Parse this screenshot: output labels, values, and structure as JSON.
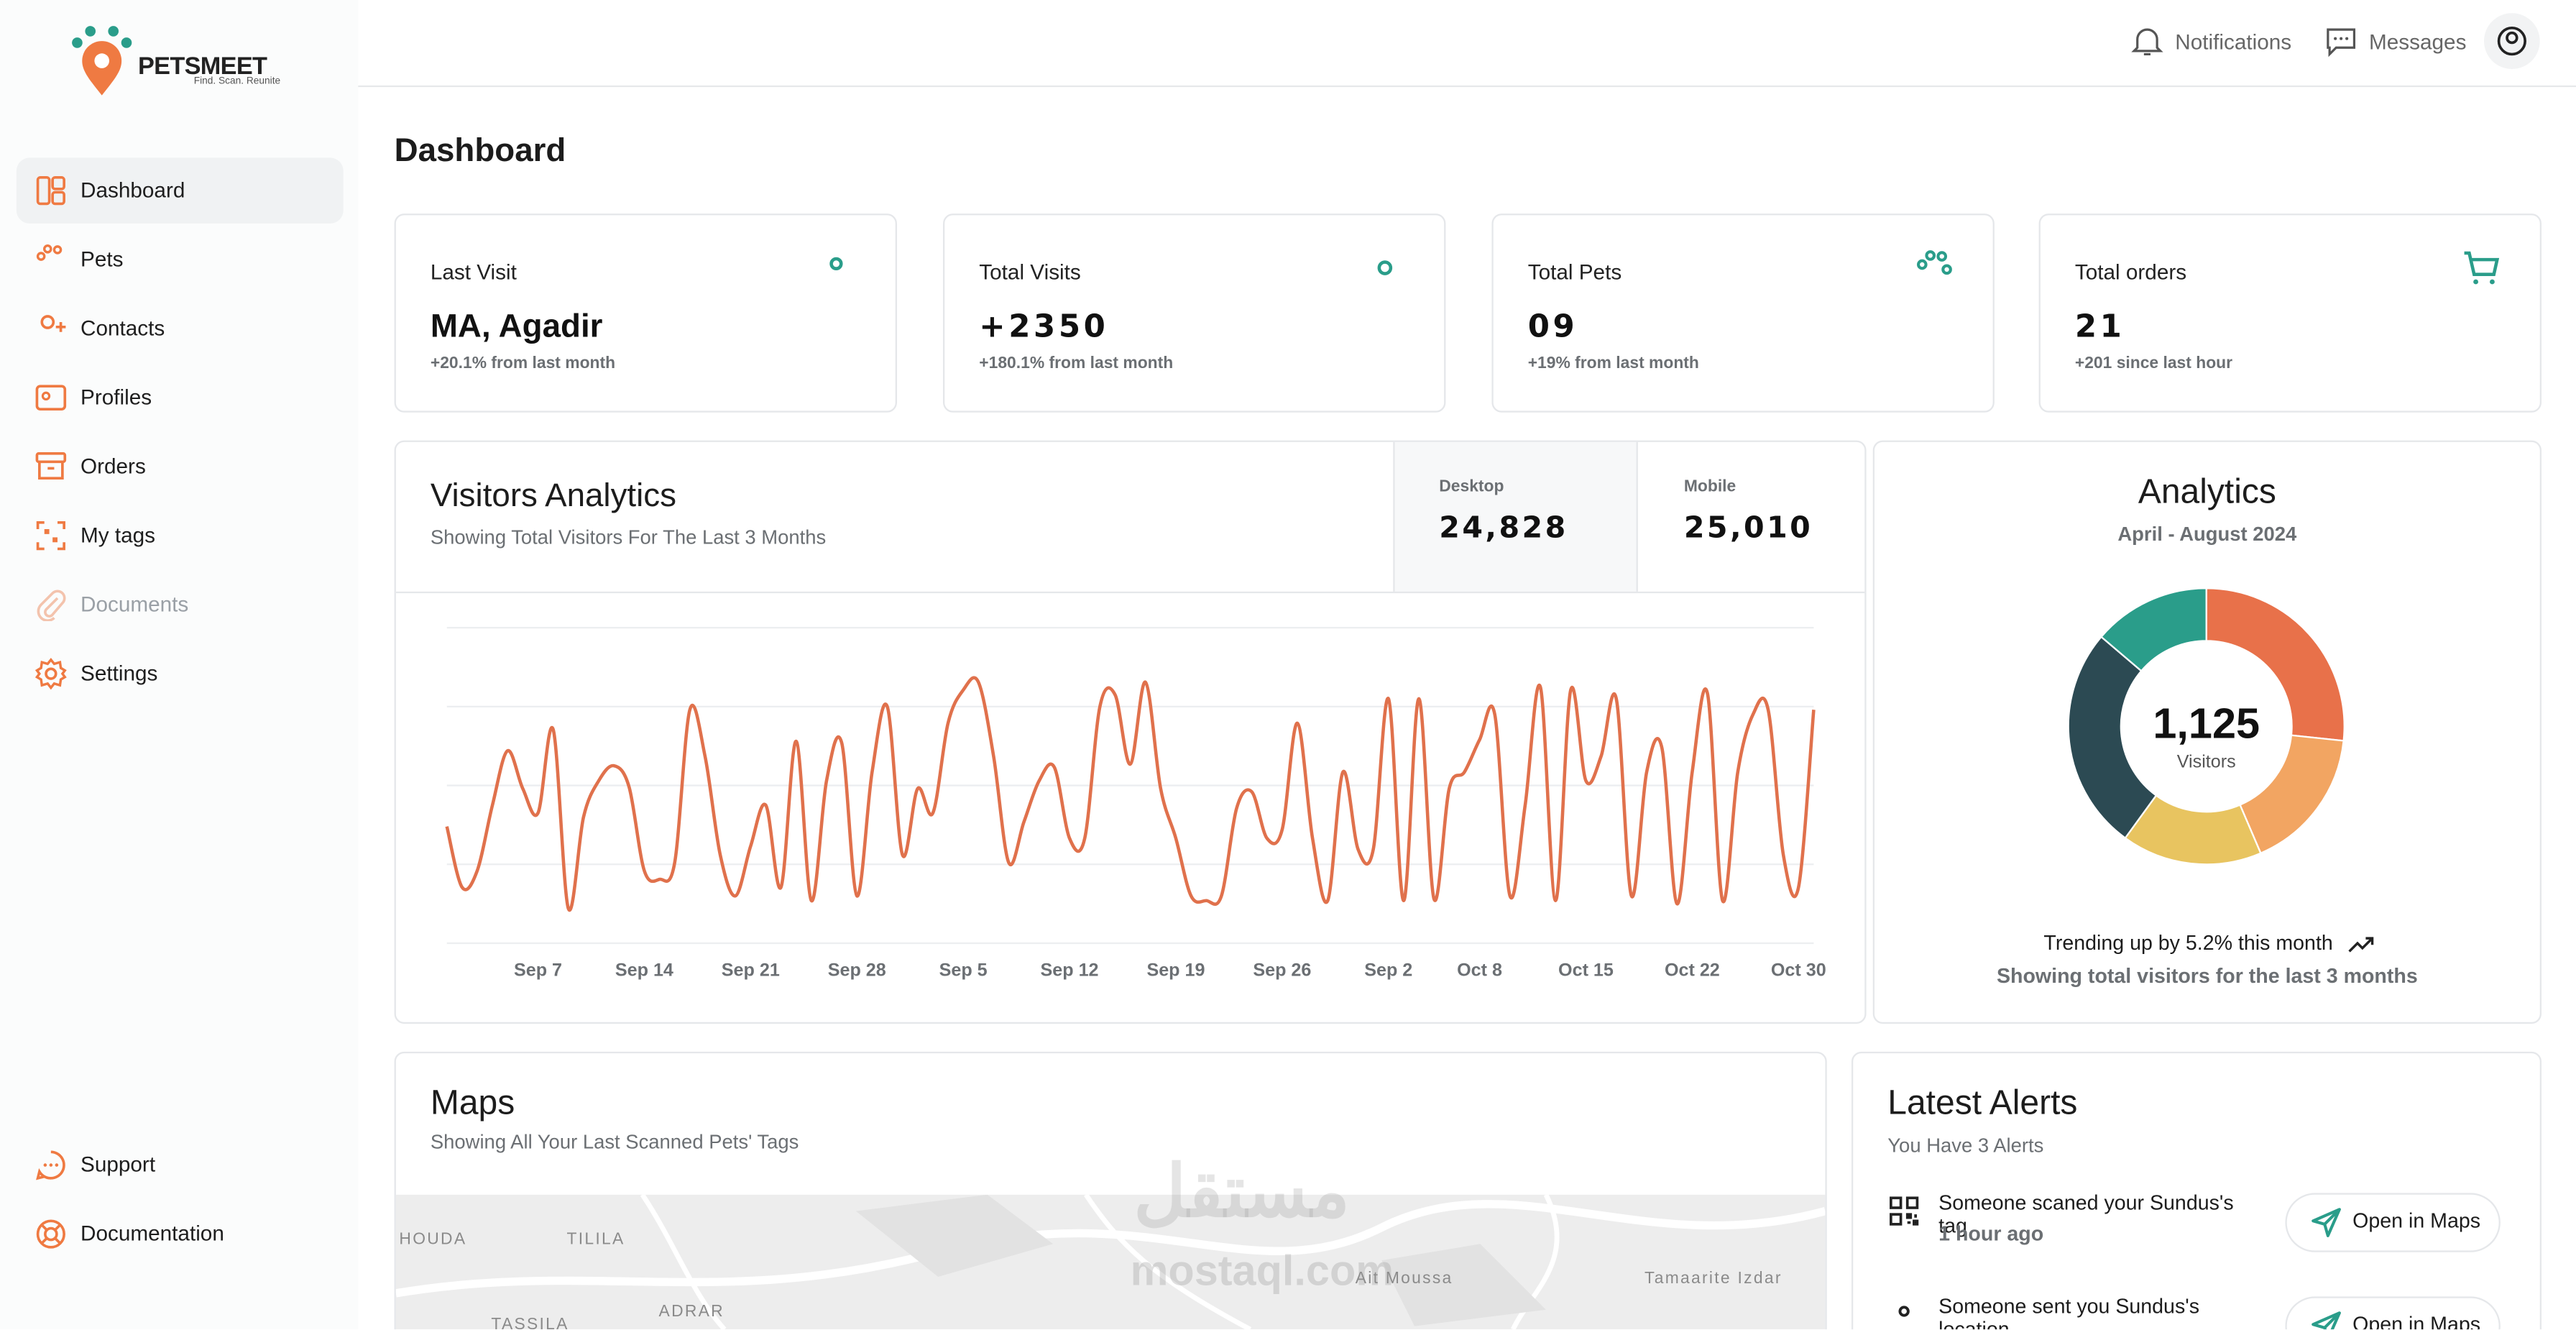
{
  "sidebar": {
    "brand": "PETSMEET",
    "tagline": "Find. Scan. Reunite",
    "nav": [
      "Dashboard",
      "Pets",
      "Contacts",
      "Profiles",
      "Orders",
      "My tags",
      "Documents",
      "Settings"
    ],
    "footer_nav": [
      "Support",
      "Documentation"
    ]
  },
  "topbar": {
    "notifications": "Notifications",
    "messages": "Messages"
  },
  "page_title": "Dashboard",
  "cards": [
    {
      "label": "Last Visit",
      "value": "MA, Agadir",
      "note": "+20.1% from last month"
    },
    {
      "label": "Total Visits",
      "value": "+2350",
      "note": "+180.1% from last month"
    },
    {
      "label": "Total Pets",
      "value": "09",
      "note": "+19% from last month"
    },
    {
      "label": "Total orders",
      "value": "21",
      "note": "+201 since last hour"
    }
  ],
  "chart_data": [
    {
      "type": "line",
      "title": "Visitors Analytics",
      "subtitle": "Showing Total Visitors For The Last 3 Months",
      "stats": [
        {
          "label": "Desktop",
          "value": "24,828"
        },
        {
          "label": "Mobile",
          "value": "25,010"
        }
      ],
      "categories": [
        null,
        null,
        null,
        null,
        null,
        null,
        "Sep 7",
        null,
        null,
        null,
        null,
        null,
        null,
        "Sep 14",
        null,
        null,
        null,
        null,
        null,
        null,
        "Sep 21",
        null,
        null,
        null,
        null,
        null,
        null,
        "Sep 28",
        null,
        null,
        null,
        null,
        null,
        null,
        "Sep 5",
        null,
        null,
        null,
        null,
        null,
        null,
        "Sep 12",
        null,
        null,
        null,
        null,
        null,
        null,
        "Sep 19",
        null,
        null,
        null,
        null,
        null,
        null,
        "Sep 26",
        null,
        null,
        null,
        null,
        null,
        null,
        "Sep 2",
        null,
        null,
        null,
        null,
        null,
        "Oct 8",
        null,
        null,
        null,
        null,
        null,
        null,
        "Oct 15",
        null,
        null,
        null,
        null,
        null,
        null,
        "Oct 22",
        null,
        null,
        null,
        null,
        null,
        null,
        "Oct 30",
        null
      ],
      "values": [
        148,
        71,
        92,
        175,
        244,
        196,
        165,
        271,
        44,
        160,
        206,
        225,
        198,
        92,
        81,
        102,
        296,
        237,
        112,
        60,
        123,
        175,
        71,
        256,
        54,
        206,
        254,
        60,
        217,
        300,
        112,
        196,
        165,
        279,
        321,
        331,
        237,
        102,
        154,
        206,
        223,
        133,
        133,
        300,
        315,
        227,
        331,
        196,
        133,
        60,
        54,
        60,
        171,
        192,
        133,
        144,
        279,
        133,
        54,
        217,
        119,
        119,
        310,
        54,
        310,
        56,
        196,
        217,
        258,
        290,
        60,
        175,
        325,
        54,
        321,
        206,
        237,
        310,
        60,
        217,
        248,
        50,
        217,
        317,
        54,
        217,
        290,
        296,
        112,
        71,
        296
      ],
      "color": "#e0714c",
      "ylim": [
        0,
        400
      ],
      "gridlines": [
        0,
        100,
        200,
        300,
        400
      ]
    },
    {
      "type": "donut",
      "title": "Analytics",
      "subtitle": "April - August 2024",
      "total": "1,125",
      "total_label": "Visitors",
      "values": [
        300,
        190,
        185,
        295,
        155
      ],
      "colors": [
        "#e8714a",
        "#f2a562",
        "#e8c460",
        "#2c4a53",
        "#2a9d8a"
      ],
      "trend": "Trending up by 5.2% this month",
      "footer": "Showing total visitors for the last 3 months"
    }
  ],
  "maps": {
    "title": "Maps",
    "subtitle": "Showing All Your Last Scanned Pets' Tags",
    "places": [
      "HOUDA",
      "TILILA",
      "ADRAR",
      "Ait Moussa",
      "Tamaarite Izdar",
      "TASSILA"
    ]
  },
  "alerts": {
    "title": "Latest Alerts",
    "subtitle": "You Have 3 Alerts",
    "items": [
      {
        "text": "Someone scaned your Sundus's tag",
        "time": "1 hour ago",
        "action": "Open in Maps"
      },
      {
        "text": "Someone sent you Sundus's location",
        "action": "Open in Maps"
      }
    ]
  },
  "watermark": [
    "مستقل",
    "mostaql.com"
  ]
}
